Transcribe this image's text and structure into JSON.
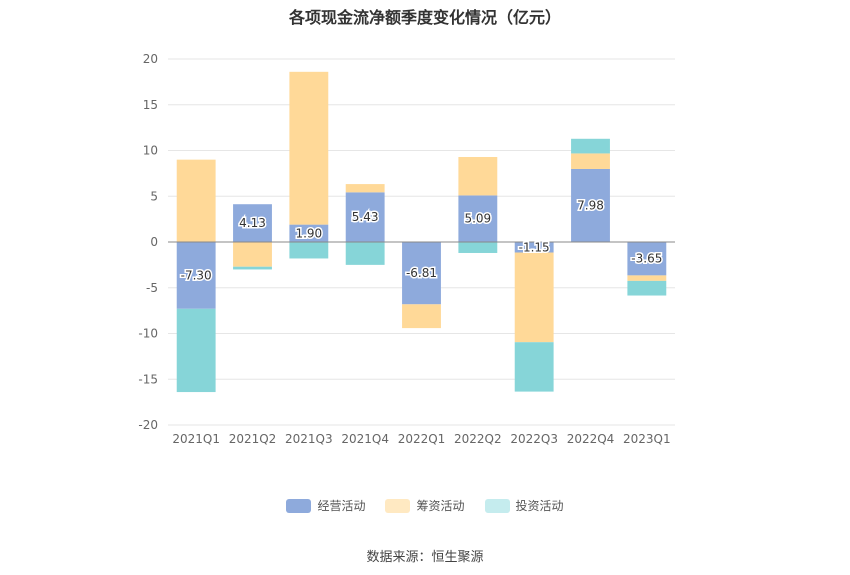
{
  "chart_data": {
    "type": "bar",
    "stacked": true,
    "title": "各项现金流净额季度变化情况（亿元）",
    "categories": [
      "2021Q1",
      "2021Q2",
      "2021Q3",
      "2021Q4",
      "2022Q1",
      "2022Q2",
      "2022Q3",
      "2022Q4",
      "2023Q1"
    ],
    "ylim": [
      -20,
      20
    ],
    "yticks": [
      20,
      15,
      10,
      5,
      0,
      -5,
      -10,
      -15,
      -20
    ],
    "grid": true,
    "legend_position": "bottom",
    "series": [
      {
        "name": "经营活动",
        "color": "#8eaadc",
        "labeled": true,
        "values": [
          -7.3,
          4.13,
          1.9,
          5.43,
          -6.81,
          5.09,
          -1.15,
          7.98,
          -3.65
        ],
        "labels": [
          "-7.30",
          "4.13",
          "1.90",
          "5.43",
          "-6.81",
          "5.09",
          "-1.15",
          "7.98",
          "-3.65"
        ]
      },
      {
        "name": "筹资活动",
        "color": "#ffd998",
        "labeled": false,
        "values": [
          9.0,
          -2.7,
          16.7,
          0.9,
          -2.6,
          4.2,
          -9.8,
          1.7,
          -0.6
        ]
      },
      {
        "name": "投资活动",
        "color": "#86d5d8",
        "labeled": false,
        "values": [
          -9.1,
          -0.3,
          -1.8,
          -2.5,
          0.0,
          -1.2,
          -5.4,
          1.6,
          -1.6
        ]
      }
    ]
  },
  "legend": [
    {
      "label": "经营活动",
      "color": "#8eaadc"
    },
    {
      "label": "筹资活动",
      "color": "#ffe9c2"
    },
    {
      "label": "投资活动",
      "color": "#c5ecee"
    }
  ],
  "source": "数据来源：恒生聚源"
}
